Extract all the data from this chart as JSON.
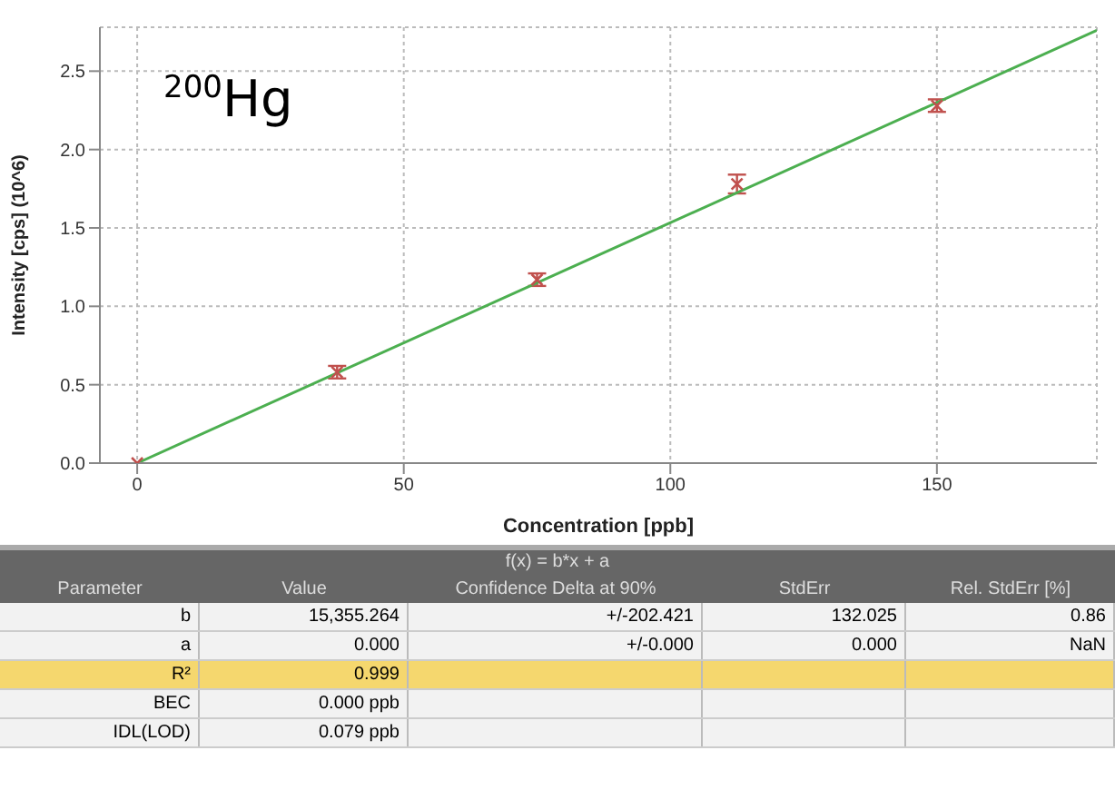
{
  "chart_data": {
    "type": "scatter",
    "xlabel": "Concentration [ppb]",
    "ylabel": "Intensity [cps] (10^6)",
    "xlim": [
      -7,
      180
    ],
    "xticks": [
      0,
      50,
      100,
      150
    ],
    "ylim": [
      0,
      2.78
    ],
    "yticks": [
      {
        "value": 0,
        "label": "0.0"
      },
      0.5,
      {
        "value": 1,
        "label": "1.0"
      },
      1.5,
      {
        "value": 2,
        "label": "2.0"
      },
      2.5
    ],
    "grid": true,
    "series": [
      {
        "color": "#c0504d",
        "marker": "cross",
        "x": [
          0,
          37.5,
          75,
          112.5,
          150
        ],
        "values": [
          0,
          0.58,
          1.17,
          1.78,
          2.28
        ],
        "errors": [
          null,
          0.04,
          0.04,
          0.06,
          0.04
        ]
      },
      {
        "type": "line",
        "color": "#4caf50",
        "x": [
          0,
          180
        ],
        "values": [
          0,
          2.76
        ]
      }
    ],
    "annotations": [
      "$^{200}$Hg",
      "f(x) = b*x + a",
      "Parameter",
      "Value",
      "Confidence Delta at 90%",
      "StdErr",
      "Rel. StdErr [%]",
      "b",
      "15,355.264",
      "+/-202.421",
      "132.025",
      "0.86",
      "a",
      "0.000",
      "+/-0.000",
      "0.000",
      "NaN",
      "R²",
      "0.999",
      "BEC",
      "0.000 ppb",
      "IDL(LOD)",
      "0.079 ppb"
    ]
  }
}
